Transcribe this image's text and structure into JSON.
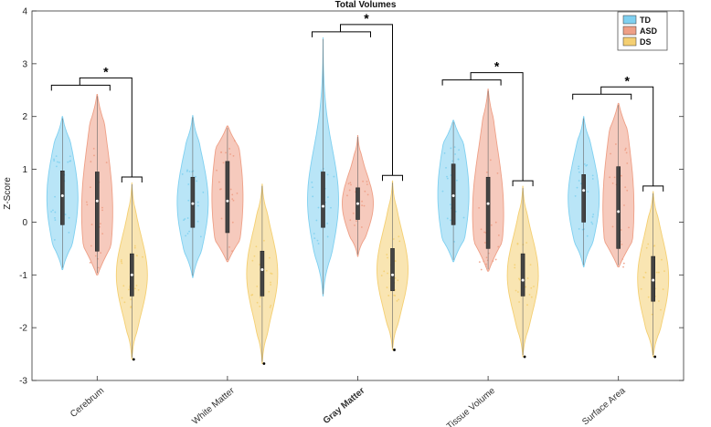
{
  "chart_data": {
    "type": "violin",
    "title": "Total Volumes",
    "xlabel": "",
    "ylabel": "Z-Score",
    "ylim": [
      -3,
      4
    ],
    "yticks": [
      -3,
      -2,
      -1,
      0,
      1,
      2,
      3,
      4
    ],
    "categories": [
      "Cerebrum",
      "White Matter",
      "Gray Matter",
      "Tissue Volume",
      "Surface Area"
    ],
    "legend": {
      "position": "top-right",
      "entries": [
        "TD",
        "ASD",
        "DS"
      ]
    },
    "colors": {
      "TD": "#7fd0f0",
      "ASD": "#ee9f86",
      "DS": "#f4cf72"
    },
    "series": [
      {
        "name": "TD",
        "groups": [
          {
            "min": -0.9,
            "max": 2.0,
            "q1": -0.05,
            "median": 0.5,
            "q3": 0.97
          },
          {
            "min": -1.05,
            "max": 2.02,
            "q1": -0.1,
            "median": 0.35,
            "q3": 0.85
          },
          {
            "min": -1.4,
            "max": 3.5,
            "q1": -0.1,
            "median": 0.3,
            "q3": 0.95
          },
          {
            "min": -0.75,
            "max": 1.93,
            "q1": -0.05,
            "median": 0.5,
            "q3": 1.1
          },
          {
            "min": -0.85,
            "max": 2.0,
            "q1": 0.0,
            "median": 0.6,
            "q3": 0.9
          }
        ]
      },
      {
        "name": "ASD",
        "groups": [
          {
            "min": -1.0,
            "max": 2.42,
            "q1": -0.55,
            "median": 0.4,
            "q3": 0.95
          },
          {
            "min": -0.75,
            "max": 1.82,
            "q1": -0.2,
            "median": 0.4,
            "q3": 1.15
          },
          {
            "min": -0.65,
            "max": 1.65,
            "q1": 0.05,
            "median": 0.35,
            "q3": 0.65
          },
          {
            "min": -0.93,
            "max": 2.52,
            "q1": -0.5,
            "median": 0.35,
            "q3": 0.85
          },
          {
            "min": -0.85,
            "max": 2.25,
            "q1": -0.5,
            "median": 0.2,
            "q3": 1.05
          }
        ]
      },
      {
        "name": "DS",
        "groups": [
          {
            "min": -2.6,
            "max": 0.75,
            "q1": -1.4,
            "median": -1.0,
            "q3": -0.6
          },
          {
            "min": -2.68,
            "max": 0.72,
            "q1": -1.4,
            "median": -0.9,
            "q3": -0.55
          },
          {
            "min": -2.42,
            "max": 0.78,
            "q1": -1.3,
            "median": -1.0,
            "q3": -0.5
          },
          {
            "min": -2.55,
            "max": 0.68,
            "q1": -1.4,
            "median": -1.1,
            "q3": -0.6
          },
          {
            "min": -2.55,
            "max": 0.58,
            "q1": -1.5,
            "median": -1.1,
            "q3": -0.65
          }
        ]
      }
    ],
    "significance": [
      {
        "category": "Cerebrum",
        "label": "*"
      },
      {
        "category": "Gray Matter",
        "label": "*"
      },
      {
        "category": "Tissue Volume",
        "label": "*"
      },
      {
        "category": "Surface Area",
        "label": "*"
      }
    ]
  }
}
